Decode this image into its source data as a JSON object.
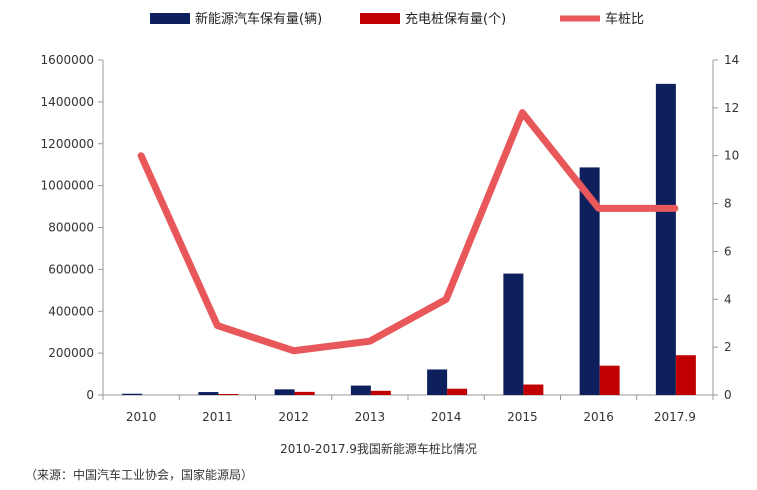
{
  "caption": "2010-2017.9我国新能源车桩比情况",
  "source": "（来源：中国汽车工业协会，国家能源局）",
  "chart_data": {
    "type": "bar",
    "categories": [
      "2010",
      "2011",
      "2012",
      "2013",
      "2014",
      "2015",
      "2016",
      "2017.9"
    ],
    "series": [
      {
        "name": "新能源汽车保有量(辆)",
        "type": "bar",
        "axis": "left",
        "color": "#0d1f5c",
        "values": [
          6000,
          14000,
          27000,
          45000,
          122000,
          580000,
          1087000,
          1486000
        ]
      },
      {
        "name": "充电桩保有量(个)",
        "type": "bar",
        "axis": "left",
        "color": "#c00000",
        "values": [
          0,
          3000,
          15000,
          20000,
          30000,
          50000,
          140000,
          190000
        ]
      },
      {
        "name": "车桩比",
        "type": "line",
        "axis": "right",
        "color": "#e8575a",
        "values": [
          10.0,
          2.9,
          1.85,
          2.25,
          4.0,
          11.8,
          7.8,
          7.8
        ]
      }
    ],
    "y_left": {
      "ylim": [
        0,
        1600000
      ],
      "ticks": [
        "0",
        "200000",
        "400000",
        "600000",
        "800000",
        "1000000",
        "1200000",
        "1400000",
        "1600000"
      ]
    },
    "y_right": {
      "ylim": [
        0,
        14
      ],
      "ticks": [
        "0",
        "2",
        "4",
        "6",
        "8",
        "10",
        "12",
        "14"
      ]
    },
    "legend_position": "top",
    "grid": false
  }
}
